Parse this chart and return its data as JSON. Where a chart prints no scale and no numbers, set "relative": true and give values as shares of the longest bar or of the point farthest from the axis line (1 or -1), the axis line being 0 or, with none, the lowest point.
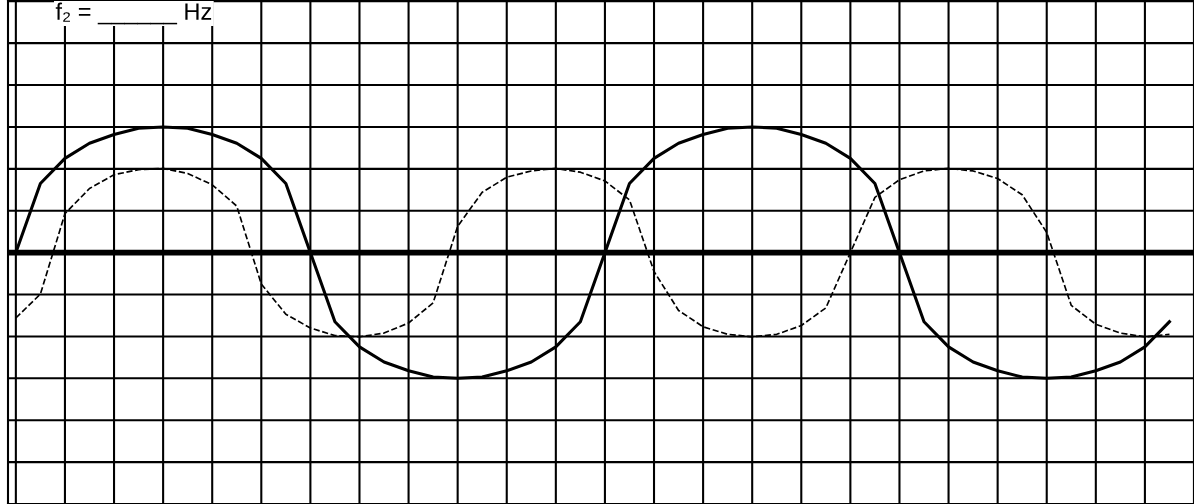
{
  "chart_data": {
    "type": "line",
    "relative": true,
    "grid": true,
    "tick_labels": false,
    "categories": [
      null,
      null,
      null,
      null,
      null,
      null,
      null,
      null,
      null,
      null,
      null,
      null,
      null,
      null,
      null,
      null,
      null,
      null,
      null,
      null,
      null,
      null,
      null,
      null,
      null,
      null,
      null,
      null,
      null,
      null,
      null,
      null,
      null,
      null,
      null,
      null,
      null,
      null,
      null,
      null,
      null,
      null,
      null,
      null,
      null,
      null,
      null,
      null
    ],
    "series": [
      {
        "color": "#000000",
        "line_style": "solid",
        "values": [
          0,
          0.55,
          0.75,
          0.87,
          0.94,
          0.99,
          1,
          0.99,
          0.94,
          0.87,
          0.75,
          0.55,
          0,
          -0.55,
          -0.75,
          -0.87,
          -0.94,
          -0.99,
          -1,
          -0.99,
          -0.94,
          -0.87,
          -0.75,
          -0.55,
          0,
          0.55,
          0.75,
          0.87,
          0.94,
          0.99,
          1,
          0.99,
          0.94,
          0.87,
          0.75,
          0.55,
          0,
          -0.55,
          -0.75,
          -0.87,
          -0.94,
          -0.99,
          -1,
          -0.99,
          -0.94,
          -0.87,
          -0.75,
          -0.55
        ]
      },
      {
        "color": "#000000",
        "line_style": "dashed",
        "values": [
          -0.52,
          -0.33,
          0.31,
          0.51,
          0.62,
          0.66,
          0.67,
          0.63,
          0.54,
          0.37,
          -0.25,
          -0.49,
          -0.6,
          -0.66,
          -0.67,
          -0.64,
          -0.56,
          -0.4,
          0.21,
          0.48,
          0.6,
          0.65,
          0.67,
          0.64,
          0.57,
          0.42,
          -0.15,
          -0.46,
          -0.59,
          -0.65,
          -0.67,
          -0.65,
          -0.58,
          -0.44,
          0,
          0.44,
          0.58,
          0.65,
          0.67,
          0.65,
          0.59,
          0.46,
          0.16,
          -0.42,
          -0.57,
          -0.64,
          -0.67,
          -0.65
        ]
      }
    ],
    "annotations": [
      "f₂ = ______ Hz"
    ]
  }
}
